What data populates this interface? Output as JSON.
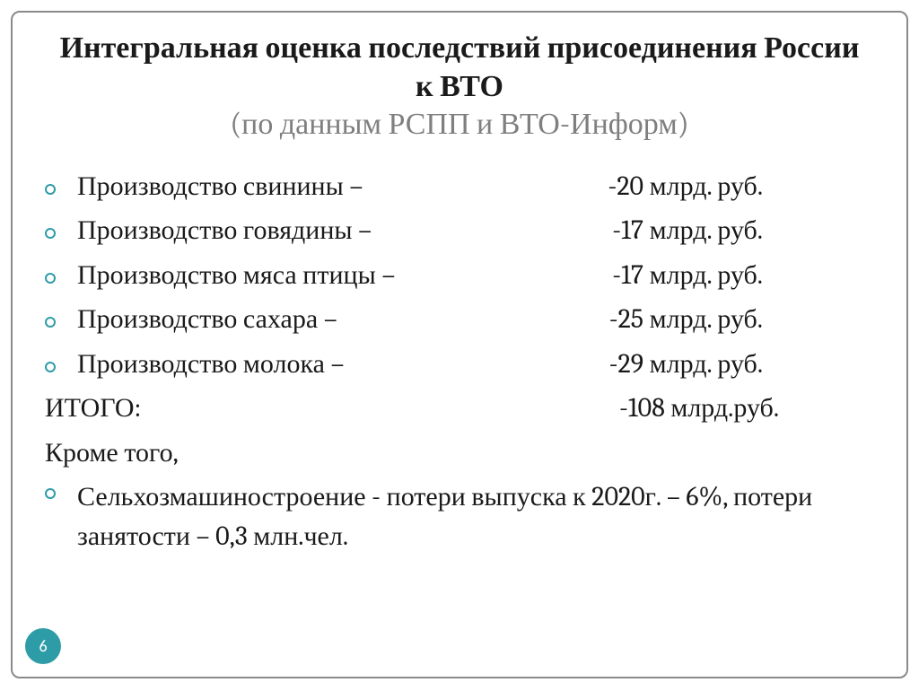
{
  "title": {
    "main": "Интегральная оценка последствий присоединения России к ВТО",
    "sub": "(по данным РСПП и ВТО-Информ)"
  },
  "items": [
    {
      "label": "Производство свинины –",
      "value": "-20 млрд. руб."
    },
    {
      "label": "Производство говядины –",
      "value": "-17 млрд. руб."
    },
    {
      "label": "Производство мяса птицы –",
      "value": "-17 млрд. руб."
    },
    {
      "label": "Производство сахара –",
      "value": "-25 млрд. руб."
    },
    {
      "label": "Производство молока –",
      "value": "-29 млрд. руб."
    }
  ],
  "total": {
    "label": "ИТОГО:",
    "value": "-108 млрд.руб."
  },
  "additional_label": "Кроме того,",
  "additional_item": "Сельхозмашиностроение - потери выпуска к 2020г. – 6%, потери занятости – 0,3 млн.чел.",
  "page_number": "6",
  "colors": {
    "accent": "#2e9ca6",
    "text": "#1a1a1a",
    "subtitle": "#7f7f7f",
    "border": "#8a8a8a",
    "background": "#ffffff"
  },
  "typography": {
    "title_fontsize": 34,
    "body_fontsize": 30,
    "pagenum_fontsize": 18
  }
}
